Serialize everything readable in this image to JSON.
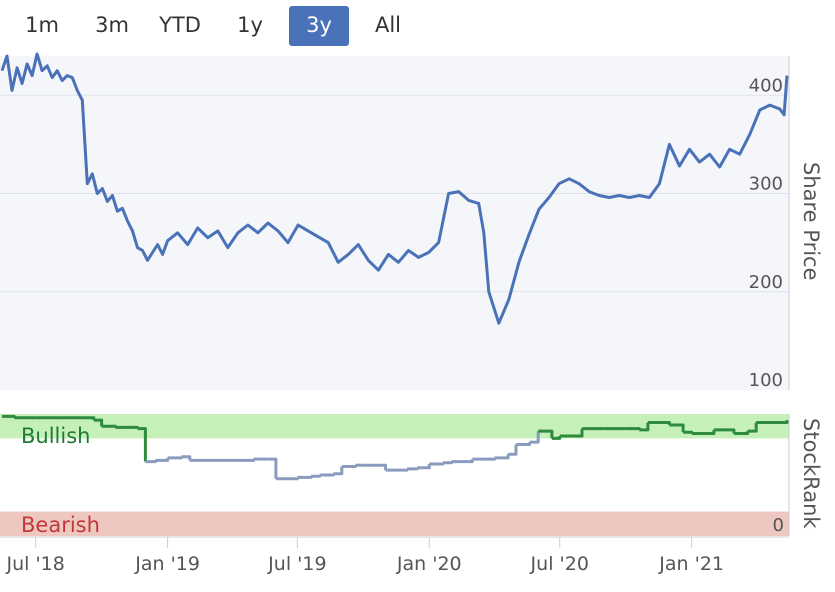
{
  "range_selector": {
    "buttons": [
      "1m",
      "3m",
      "YTD",
      "1y",
      "3y",
      "All"
    ],
    "active": "3y"
  },
  "chart_data": [
    {
      "type": "line",
      "ylabel": "Share Price",
      "ylim": [
        100,
        440
      ],
      "yticks": [
        100,
        200,
        300,
        400
      ],
      "grid": true,
      "color": "#4a72b8",
      "series": [
        {
          "x": [
            "2018-05-15",
            "2018-05-22",
            "2018-05-29",
            "2018-06-05",
            "2018-06-12",
            "2018-06-19",
            "2018-06-26",
            "2018-07-03",
            "2018-07-10",
            "2018-07-17",
            "2018-07-24",
            "2018-07-31",
            "2018-08-07",
            "2018-08-14",
            "2018-08-21",
            "2018-08-28",
            "2018-09-04",
            "2018-09-11",
            "2018-09-18",
            "2018-09-25",
            "2018-10-02",
            "2018-10-09",
            "2018-10-16",
            "2018-10-23",
            "2018-10-30",
            "2018-11-06",
            "2018-11-13",
            "2018-11-20",
            "2018-11-27",
            "2018-12-04",
            "2018-12-11",
            "2018-12-18",
            "2018-12-25",
            "2019-01-01",
            "2019-01-15",
            "2019-01-29",
            "2019-02-12",
            "2019-02-26",
            "2019-03-12",
            "2019-03-26",
            "2019-04-09",
            "2019-04-23",
            "2019-05-07",
            "2019-05-21",
            "2019-06-04",
            "2019-06-18",
            "2019-07-02",
            "2019-07-16",
            "2019-07-30",
            "2019-08-13",
            "2019-08-27",
            "2019-09-10",
            "2019-09-24",
            "2019-10-08",
            "2019-10-22",
            "2019-11-05",
            "2019-11-19",
            "2019-12-03",
            "2019-12-17",
            "2019-12-31",
            "2020-01-14",
            "2020-01-28",
            "2020-02-11",
            "2020-02-25",
            "2020-03-10",
            "2020-03-17",
            "2020-03-24",
            "2020-04-07",
            "2020-04-21",
            "2020-05-05",
            "2020-05-19",
            "2020-06-02",
            "2020-06-16",
            "2020-06-30",
            "2020-07-14",
            "2020-07-28",
            "2020-08-11",
            "2020-08-25",
            "2020-09-08",
            "2020-09-22",
            "2020-10-06",
            "2020-10-20",
            "2020-11-03",
            "2020-11-17",
            "2020-12-01",
            "2020-12-15",
            "2020-12-29",
            "2021-01-12",
            "2021-01-26",
            "2021-02-09",
            "2021-02-23",
            "2021-03-09",
            "2021-03-23",
            "2021-04-06",
            "2021-04-20",
            "2021-05-04",
            "2021-05-10",
            "2021-05-14"
          ],
          "values": [
            425,
            440,
            405,
            428,
            412,
            432,
            420,
            442,
            425,
            430,
            418,
            425,
            415,
            420,
            418,
            405,
            395,
            310,
            320,
            300,
            305,
            292,
            298,
            282,
            285,
            272,
            262,
            245,
            242,
            232,
            240,
            248,
            238,
            252,
            260,
            248,
            265,
            255,
            262,
            245,
            260,
            268,
            260,
            270,
            262,
            250,
            268,
            262,
            256,
            250,
            230,
            238,
            248,
            232,
            222,
            238,
            230,
            242,
            235,
            240,
            250,
            300,
            302,
            293,
            290,
            260,
            200,
            168,
            192,
            230,
            258,
            284,
            296,
            310,
            315,
            310,
            302,
            298,
            296,
            298,
            296,
            298,
            296,
            310,
            350,
            328,
            345,
            332,
            340,
            327,
            345,
            340,
            360,
            385,
            390,
            386,
            380,
            420
          ]
        }
      ]
    },
    {
      "type": "line",
      "ylabel": "StockRank",
      "ylim": [
        0,
        100
      ],
      "zones": [
        {
          "label": "Bullish",
          "from": 80,
          "to": 100,
          "color": "#c5f0b8"
        },
        {
          "label": "Bearish",
          "from": 0,
          "to": 20,
          "color": "#efc7c1"
        }
      ],
      "ytick_labels": [
        "0"
      ],
      "series": [
        {
          "x": [
            "2018-05-15",
            "2018-06-01",
            "2018-07-01",
            "2018-08-01",
            "2018-09-01",
            "2018-09-20",
            "2018-10-01",
            "2018-10-20",
            "2018-11-01",
            "2018-11-20",
            "2018-12-01",
            "2018-12-15",
            "2019-01-01",
            "2019-01-20",
            "2019-02-01",
            "2019-03-01",
            "2019-04-01",
            "2019-05-01",
            "2019-05-20",
            "2019-06-01",
            "2019-07-01",
            "2019-07-20",
            "2019-08-01",
            "2019-08-20",
            "2019-09-01",
            "2019-09-20",
            "2019-10-01",
            "2019-11-01",
            "2019-12-01",
            "2019-12-15",
            "2020-01-01",
            "2020-01-20",
            "2020-02-01",
            "2020-03-01",
            "2020-04-01",
            "2020-04-20",
            "2020-05-01",
            "2020-05-20",
            "2020-06-01",
            "2020-06-20",
            "2020-07-01",
            "2020-07-20",
            "2020-08-01",
            "2020-09-01",
            "2020-10-01",
            "2020-10-20",
            "2020-11-01",
            "2020-12-01",
            "2020-12-20",
            "2021-01-01",
            "2021-02-01",
            "2021-03-01",
            "2021-03-20",
            "2021-04-01",
            "2021-05-14"
          ],
          "values": [
            98,
            97,
            97,
            97,
            97,
            95,
            90,
            89,
            89,
            88,
            61,
            62,
            64,
            65,
            62,
            62,
            62,
            63,
            63,
            47,
            48,
            49,
            50,
            51,
            57,
            58,
            58,
            54,
            55,
            56,
            59,
            60,
            61,
            63,
            64,
            67,
            75,
            77,
            86,
            80,
            82,
            82,
            88,
            88,
            88,
            87,
            93,
            91,
            85,
            84,
            87,
            84,
            86,
            93,
            95
          ]
        }
      ]
    }
  ],
  "x_ticks": [
    "Jul '18",
    "Jan '19",
    "Jul '19",
    "Jan '20",
    "Jul '20",
    "Jan '21"
  ],
  "x_domain": [
    "2018-05-15",
    "2021-05-14"
  ],
  "zone_labels": {
    "bullish": "Bullish",
    "bearish": "Bearish"
  },
  "stockrank_zero_label": "0"
}
